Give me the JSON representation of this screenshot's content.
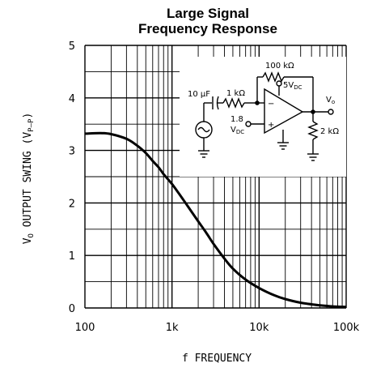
{
  "chart_data": {
    "type": "line",
    "title_line1": "Large Signal",
    "title_line2": "Frequency Response",
    "xlabel": "f FREQUENCY",
    "ylabel_main": "V",
    "ylabel_sub": "O",
    "ylabel_rest": " OUTPUT SWING (V",
    "ylabel_sub2": "P–P",
    "ylabel_end": ")",
    "x_scale": "log",
    "xlim": [
      100,
      100000
    ],
    "ylim": [
      0,
      5
    ],
    "x_ticks": [
      {
        "value": 100,
        "label": "100"
      },
      {
        "value": 1000,
        "label": "1k"
      },
      {
        "value": 10000,
        "label": "10k"
      },
      {
        "value": 100000,
        "label": "100k"
      }
    ],
    "y_ticks": [
      {
        "value": 0,
        "label": "0"
      },
      {
        "value": 1,
        "label": "1"
      },
      {
        "value": 2,
        "label": "2"
      },
      {
        "value": 3,
        "label": "3"
      },
      {
        "value": 4,
        "label": "4"
      },
      {
        "value": 5,
        "label": "5"
      }
    ],
    "grid": true,
    "series": [
      {
        "x": [
          100,
          150,
          200,
          300,
          400,
          500,
          600,
          700,
          800,
          900,
          1000,
          1200,
          1500,
          2000,
          2500,
          3000,
          4000,
          5000,
          7000,
          10000,
          15000,
          20000,
          30000,
          50000,
          70000,
          100000
        ],
        "y": [
          3.32,
          3.33,
          3.31,
          3.22,
          3.09,
          2.95,
          2.8,
          2.68,
          2.55,
          2.45,
          2.36,
          2.18,
          1.95,
          1.65,
          1.42,
          1.22,
          0.94,
          0.75,
          0.54,
          0.38,
          0.24,
          0.17,
          0.1,
          0.05,
          0.03,
          0.02
        ]
      }
    ],
    "inset": {
      "cap": "10 μF",
      "r_in": "1 kΩ",
      "r_fb": "100 kΩ",
      "supply": "5V",
      "supply_sub": "DC",
      "bias": "1.8",
      "bias_v": "V",
      "bias_sub": "DC",
      "out": "V",
      "out_sub": "o",
      "r_load": "2 kΩ",
      "minus": "−",
      "plus": "+"
    }
  },
  "colors": {
    "line": "#000000",
    "grid": "#000000",
    "background": "#ffffff"
  }
}
